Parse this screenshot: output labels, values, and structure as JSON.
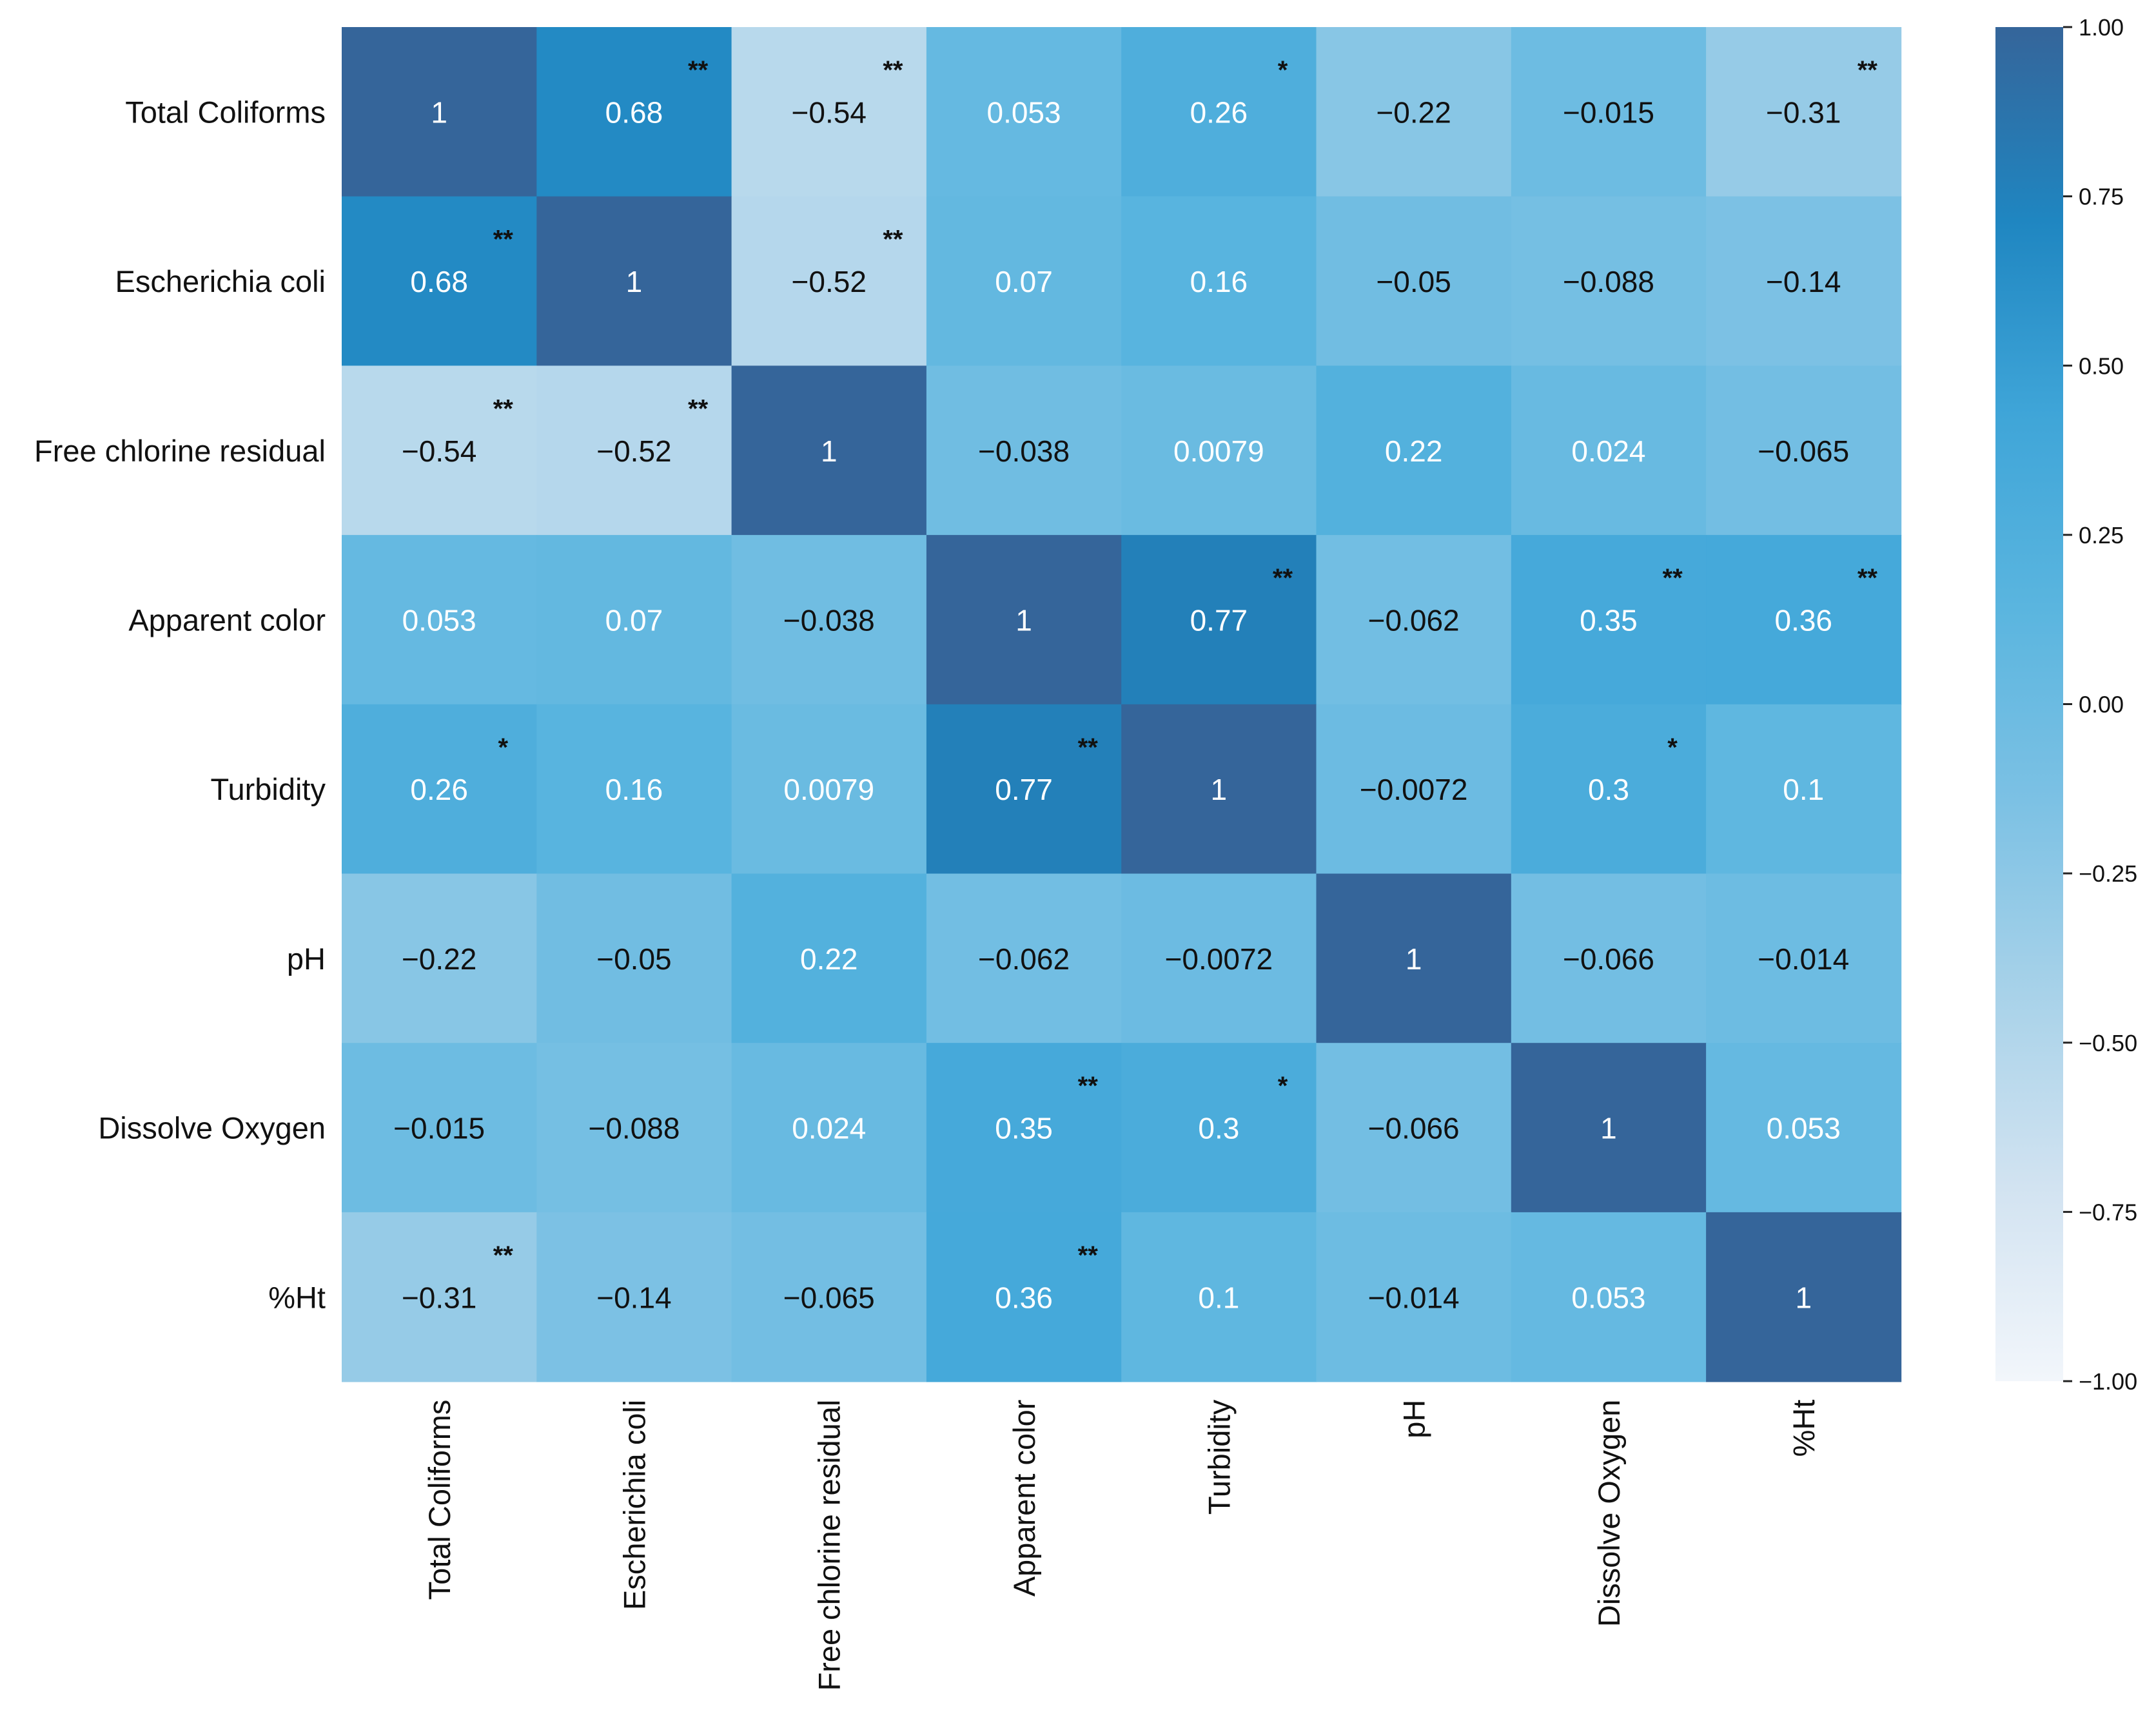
{
  "chart_data": {
    "type": "heatmap",
    "title": "",
    "row_labels": [
      "Total Coliforms",
      "Escherichia coli",
      "Free chlorine residual",
      "Apparent color",
      "Turbidity",
      "pH",
      "Dissolve Oxygen",
      "%Ht"
    ],
    "col_labels": [
      "Total Coliforms",
      "Escherichia coli",
      "Free chlorine residual",
      "Apparent color",
      "Turbidity",
      "pH",
      "Dissolve Oxygen",
      "%Ht"
    ],
    "values": [
      [
        1,
        0.68,
        -0.54,
        0.053,
        0.26,
        -0.22,
        -0.015,
        -0.31
      ],
      [
        0.68,
        1,
        -0.52,
        0.07,
        0.16,
        -0.05,
        -0.088,
        -0.14
      ],
      [
        -0.54,
        -0.52,
        1,
        -0.038,
        0.0079,
        0.22,
        0.024,
        -0.065
      ],
      [
        0.053,
        0.07,
        -0.038,
        1,
        0.77,
        -0.062,
        0.35,
        0.36
      ],
      [
        0.26,
        0.16,
        0.0079,
        0.77,
        1,
        -0.0072,
        0.3,
        0.1
      ],
      [
        -0.22,
        -0.05,
        0.22,
        -0.062,
        -0.0072,
        1,
        -0.066,
        -0.014
      ],
      [
        -0.015,
        -0.088,
        0.024,
        0.35,
        0.3,
        -0.066,
        1,
        0.053
      ],
      [
        -0.31,
        -0.14,
        -0.065,
        0.36,
        0.1,
        -0.014,
        0.053,
        1
      ]
    ],
    "cell_labels": [
      [
        "1",
        "0.68",
        "−0.54",
        "0.053",
        "0.26",
        "−0.22",
        "−0.015",
        "−0.31"
      ],
      [
        "0.68",
        "1",
        "−0.52",
        "0.07",
        "0.16",
        "−0.05",
        "−0.088",
        "−0.14"
      ],
      [
        "−0.54",
        "−0.52",
        "1",
        "−0.038",
        "0.0079",
        "0.22",
        "0.024",
        "−0.065"
      ],
      [
        "0.053",
        "0.07",
        "−0.038",
        "1",
        "0.77",
        "−0.062",
        "0.35",
        "0.36"
      ],
      [
        "0.26",
        "0.16",
        "0.0079",
        "0.77",
        "1",
        "−0.0072",
        "0.3",
        "0.1"
      ],
      [
        "−0.22",
        "−0.05",
        "0.22",
        "−0.062",
        "−0.0072",
        "1",
        "−0.066",
        "−0.014"
      ],
      [
        "−0.015",
        "−0.088",
        "0.024",
        "0.35",
        "0.3",
        "−0.066",
        "1",
        "0.053"
      ],
      [
        "−0.31",
        "−0.14",
        "−0.065",
        "0.36",
        "0.1",
        "−0.014",
        "0.053",
        "1"
      ]
    ],
    "significance": [
      [
        "",
        "**",
        "**",
        "",
        "*",
        "",
        "",
        "**"
      ],
      [
        "**",
        "",
        "**",
        "",
        "",
        "",
        "",
        ""
      ],
      [
        "**",
        "**",
        "",
        "",
        "",
        "",
        "",
        ""
      ],
      [
        "",
        "",
        "",
        "",
        "**",
        "",
        "**",
        "**"
      ],
      [
        "*",
        "",
        "",
        "**",
        "",
        "",
        "*",
        ""
      ],
      [
        "",
        "",
        "",
        "",
        "",
        "",
        "",
        ""
      ],
      [
        "",
        "",
        "",
        "**",
        "*",
        "",
        "",
        ""
      ],
      [
        "**",
        "",
        "",
        "**",
        "",
        "",
        "",
        ""
      ]
    ],
    "colorbar": {
      "min": -1,
      "max": 1,
      "ticks": [
        1,
        0.75,
        0.5,
        0.25,
        0,
        -0.25,
        -0.5,
        -0.75,
        -1
      ],
      "tick_labels": [
        "1.00",
        "0.75",
        "0.50",
        "0.25",
        "0.00",
        "−0.25",
        "−0.50",
        "−0.75",
        "−1.00"
      ],
      "colormap_stops": [
        "#f2f6fb",
        "#d2e3f1",
        "#a8d2e9",
        "#7cc1e4",
        "#5ab5df",
        "#3fa5d8",
        "#1f86c1",
        "#35659a"
      ]
    }
  }
}
